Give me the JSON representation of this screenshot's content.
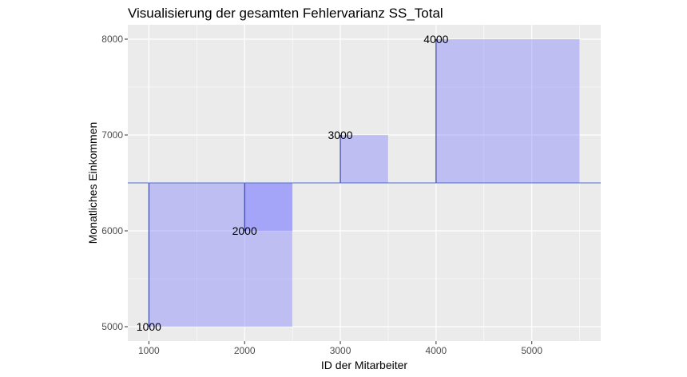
{
  "chart_data": {
    "type": "scatter",
    "title": "Visualisierung der gesamten Fehlervarianz SS_Total",
    "xlabel": "ID der Mitarbeiter",
    "ylabel": "Monatliches Einkommen",
    "xlim": [
      780,
      5720
    ],
    "ylim": [
      4850,
      8150
    ],
    "xticks": [
      1000,
      2000,
      3000,
      4000,
      5000
    ],
    "yticks": [
      5000,
      6000,
      7000,
      8000
    ],
    "xticks_minor": [
      1500,
      2500,
      3500,
      4500,
      5500
    ],
    "yticks_minor": [
      5500,
      6500,
      7500
    ],
    "mean_line": 6500,
    "grid": true,
    "colors": {
      "panel": "#ebebeb",
      "grid": "#ffffff",
      "square_fill": "#8080ff",
      "mean_line": "#4d6fd6",
      "segment": "#1a2a8c"
    },
    "points": [
      {
        "x": 1000,
        "y": 5000,
        "label": "1000"
      },
      {
        "x": 2000,
        "y": 6000,
        "label": "2000"
      },
      {
        "x": 3000,
        "y": 7000,
        "label": "3000"
      },
      {
        "x": 4000,
        "y": 8000,
        "label": "4000"
      }
    ]
  }
}
